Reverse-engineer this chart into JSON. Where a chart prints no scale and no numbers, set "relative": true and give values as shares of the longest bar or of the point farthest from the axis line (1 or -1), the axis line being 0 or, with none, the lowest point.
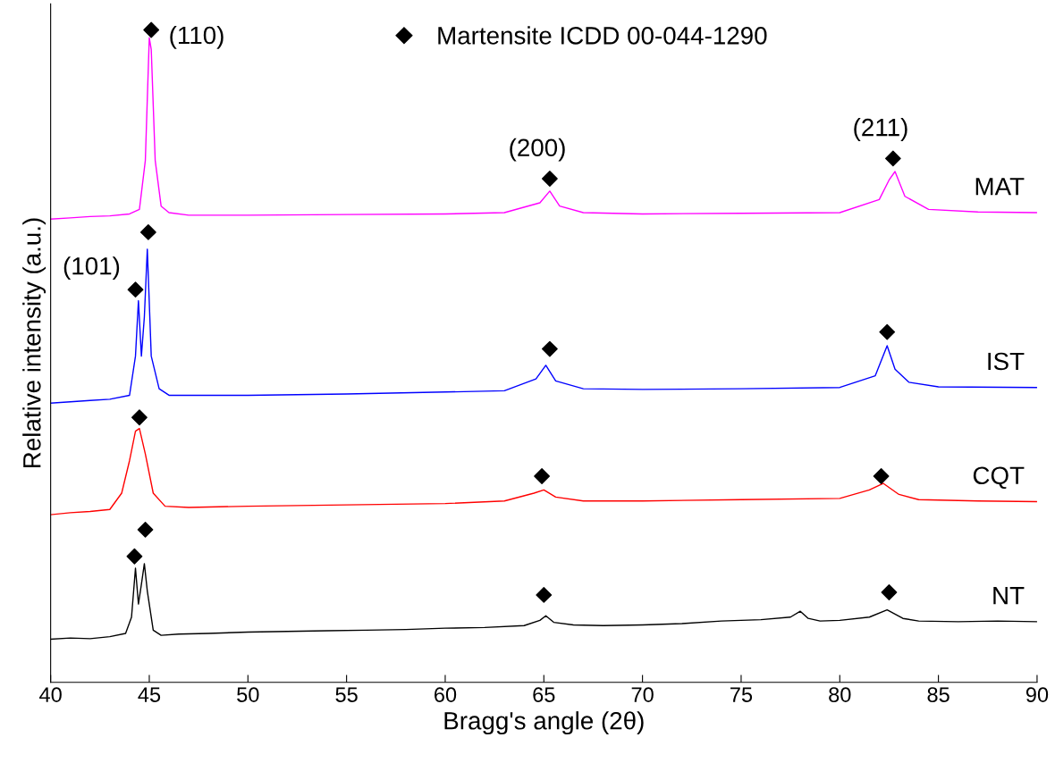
{
  "chart_data": {
    "type": "line",
    "relative": true,
    "xlabel": "Bragg's angle (2θ)",
    "ylabel": "Relative intensity (a.u.)",
    "xlim": [
      40,
      90
    ],
    "xticks": [
      40,
      45,
      50,
      55,
      60,
      65,
      70,
      75,
      80,
      85,
      90
    ],
    "grid": false,
    "legend": "top",
    "tick_labels": "x",
    "series": [
      {
        "name": "NT",
        "color": "#000000",
        "x": [
          40,
          41,
          42,
          43,
          43.8,
          44.1,
          44.3,
          44.45,
          44.6,
          44.75,
          44.9,
          45.2,
          45.6,
          46.5,
          48,
          50,
          52,
          54,
          56,
          58,
          60,
          62,
          64,
          64.8,
          65.1,
          65.5,
          66.5,
          68,
          70,
          72,
          74,
          76,
          77.5,
          78,
          78.4,
          79,
          80,
          81.5,
          82.4,
          83.2,
          84,
          86,
          88,
          90
        ],
        "values": [
          0.066,
          0.068,
          0.067,
          0.07,
          0.075,
          0.1,
          0.175,
          0.12,
          0.15,
          0.182,
          0.14,
          0.08,
          0.072,
          0.074,
          0.075,
          0.077,
          0.078,
          0.079,
          0.08,
          0.081,
          0.083,
          0.084,
          0.087,
          0.095,
          0.102,
          0.092,
          0.088,
          0.087,
          0.088,
          0.09,
          0.094,
          0.096,
          0.1,
          0.109,
          0.098,
          0.094,
          0.095,
          0.1,
          0.111,
          0.098,
          0.094,
          0.093,
          0.094,
          0.093
        ]
      },
      {
        "name": "CQT",
        "color": "#ff0000",
        "x": [
          40,
          41,
          42,
          43,
          43.6,
          44,
          44.3,
          44.5,
          44.8,
          45.2,
          45.8,
          47,
          50,
          55,
          60,
          63,
          64.5,
          65,
          65.6,
          67,
          70,
          75,
          80,
          81.5,
          82.2,
          83,
          84,
          87,
          90
        ],
        "values": [
          0.257,
          0.26,
          0.262,
          0.265,
          0.29,
          0.34,
          0.385,
          0.389,
          0.35,
          0.29,
          0.27,
          0.268,
          0.27,
          0.272,
          0.274,
          0.278,
          0.29,
          0.295,
          0.284,
          0.278,
          0.278,
          0.28,
          0.282,
          0.295,
          0.305,
          0.288,
          0.28,
          0.278,
          0.277
        ]
      },
      {
        "name": "IST",
        "color": "#0000ff",
        "x": [
          40,
          41,
          42,
          43,
          44,
          44.3,
          44.45,
          44.6,
          44.75,
          44.9,
          45.1,
          45.5,
          46,
          48,
          50,
          55,
          60,
          63,
          64.6,
          65.1,
          65.6,
          67,
          70,
          75,
          80,
          81.8,
          82.4,
          82.8,
          83.5,
          85,
          90
        ],
        "values": [
          0.428,
          0.43,
          0.432,
          0.434,
          0.44,
          0.5,
          0.585,
          0.5,
          0.56,
          0.664,
          0.5,
          0.45,
          0.44,
          0.44,
          0.44,
          0.442,
          0.445,
          0.447,
          0.465,
          0.486,
          0.462,
          0.45,
          0.449,
          0.45,
          0.452,
          0.47,
          0.516,
          0.48,
          0.46,
          0.453,
          0.452
        ]
      },
      {
        "name": "MAT",
        "color": "#ff00ff",
        "x": [
          40,
          41,
          42,
          43,
          44,
          44.5,
          44.8,
          45.0,
          45.1,
          45.3,
          45.6,
          46,
          47,
          50,
          55,
          60,
          63,
          64.8,
          65.3,
          65.8,
          67,
          70,
          75,
          80,
          82,
          82.5,
          82.8,
          83.3,
          84.5,
          87,
          90
        ],
        "values": [
          0.71,
          0.712,
          0.714,
          0.715,
          0.718,
          0.725,
          0.8,
          0.988,
          0.97,
          0.8,
          0.73,
          0.72,
          0.716,
          0.716,
          0.717,
          0.718,
          0.72,
          0.735,
          0.753,
          0.73,
          0.72,
          0.718,
          0.719,
          0.72,
          0.74,
          0.77,
          0.783,
          0.745,
          0.725,
          0.721,
          0.72
        ]
      },
      {
        "name": "Martensite ICDD 00-044-1290",
        "type": "scatter",
        "marker": "diamond",
        "color": "#000000",
        "x": [
          44.25,
          44.8,
          65.0,
          82.5,
          44.5,
          64.9,
          82.1,
          44.3,
          44.95,
          65.3,
          82.4,
          45.1,
          65.3,
          82.7
        ],
        "values": [
          0.193,
          0.234,
          0.134,
          0.138,
          0.406,
          0.316,
          0.316,
          0.602,
          0.69,
          0.511,
          0.537,
          1.0,
          0.772,
          0.803
        ]
      }
    ],
    "annotations": [
      {
        "text": "(110)",
        "x": 45.1,
        "y": 1.0
      },
      {
        "text": "(200)",
        "x": 65.3,
        "y": 0.772
      },
      {
        "text": "(211)",
        "x": 82.7,
        "y": 0.803
      },
      {
        "text": "(101)",
        "x": 44.3,
        "y": 0.602
      }
    ]
  }
}
